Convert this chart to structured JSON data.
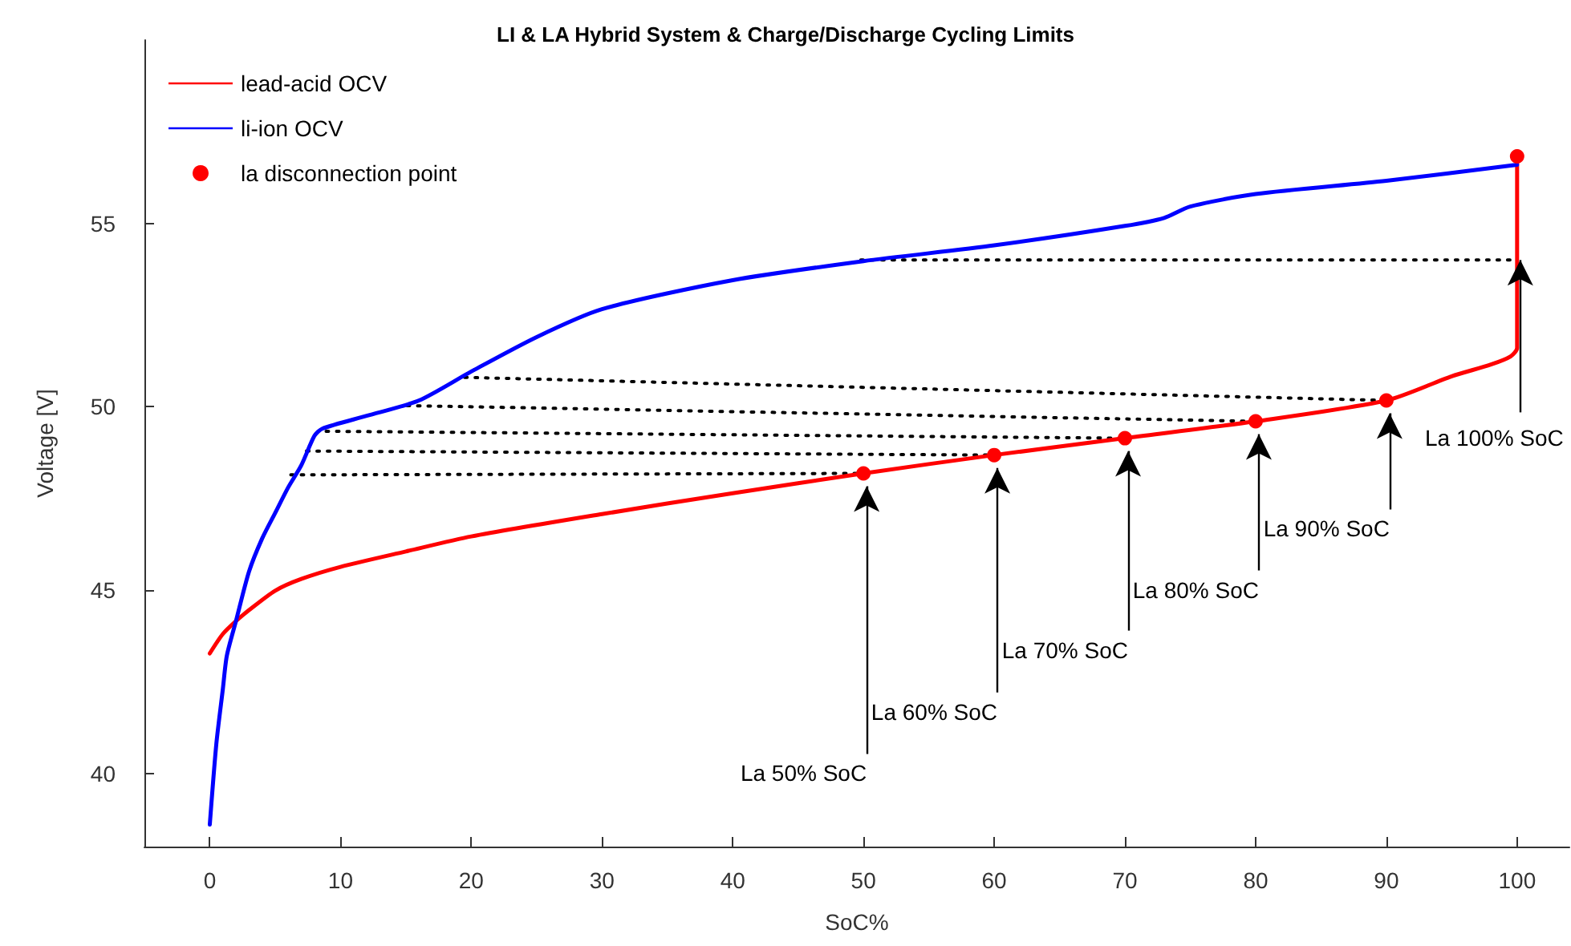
{
  "chart_data": {
    "type": "line",
    "title": "LI & LA Hybrid System & Charge/Discharge Cycling Limits",
    "xlabel": "SoC%",
    "ylabel": "Voltage [V]",
    "xlim": [
      -5,
      104
    ],
    "xticks": [
      0,
      10,
      20,
      30,
      40,
      50,
      60,
      70,
      80,
      90,
      100
    ],
    "ylim": [
      38,
      60
    ],
    "yticks": [
      40,
      45,
      50,
      55
    ],
    "grid": false,
    "legend": "top left",
    "line_style": "solid",
    "series": [
      {
        "name": "lead-acid OCV",
        "color": "#ff0000",
        "x": [
          0,
          1,
          2,
          3,
          5,
          7,
          10,
          15,
          20,
          30,
          40,
          50,
          60,
          70,
          80,
          90,
          95,
          98,
          99.5,
          100,
          100
        ],
        "values": [
          43.27,
          43.8,
          44.15,
          44.45,
          44.98,
          45.3,
          45.63,
          46.05,
          46.46,
          47.07,
          47.64,
          48.18,
          48.68,
          49.14,
          49.6,
          50.17,
          50.83,
          51.15,
          51.37,
          51.6,
          56.83
        ]
      },
      {
        "name": "li-ion OCV",
        "color": "#0000ff",
        "x": [
          0,
          0.5,
          1,
          1.3,
          2,
          3,
          4,
          5,
          6,
          7,
          8,
          8.6,
          12,
          16,
          20,
          25,
          30,
          40,
          50,
          60,
          70,
          73,
          75,
          80,
          90,
          100
        ],
        "values": [
          38.6,
          40.8,
          42.3,
          43.2,
          44.15,
          45.5,
          46.4,
          47.1,
          47.8,
          48.4,
          49.2,
          49.4,
          49.75,
          50.17,
          50.96,
          51.9,
          52.66,
          53.45,
          53.97,
          54.4,
          54.93,
          55.15,
          55.46,
          55.8,
          56.16,
          56.6
        ]
      },
      {
        "name": "la disconnection point",
        "type": "scatter",
        "marker": "circle",
        "color": "#ff0000",
        "x": [
          50,
          60,
          70,
          80,
          90,
          100
        ],
        "values": [
          48.18,
          48.68,
          49.14,
          49.6,
          50.17,
          56.83
        ]
      },
      {
        "type": "line",
        "line_style": "dotted",
        "color": "#000000",
        "x": [
          6.2,
          50
        ],
        "values": [
          48.14,
          48.18
        ]
      },
      {
        "type": "line",
        "line_style": "dotted",
        "color": "#000000",
        "x": [
          7.4,
          60
        ],
        "values": [
          48.79,
          48.68
        ]
      },
      {
        "type": "line",
        "line_style": "dotted",
        "color": "#000000",
        "x": [
          8.9,
          70
        ],
        "values": [
          49.33,
          49.14
        ]
      },
      {
        "type": "line",
        "line_style": "dotted",
        "color": "#000000",
        "x": [
          15.1,
          80
        ],
        "values": [
          50.03,
          49.6
        ]
      },
      {
        "type": "line",
        "line_style": "dotted",
        "color": "#000000",
        "x": [
          19.5,
          90
        ],
        "values": [
          50.8,
          50.17
        ]
      },
      {
        "type": "line",
        "line_style": "dotted",
        "color": "#000000",
        "x": [
          49.8,
          100
        ],
        "values": [
          54.0,
          54.0
        ]
      }
    ],
    "annotations": [
      {
        "text": "La 50% SoC",
        "x": 50,
        "y": 48.18
      },
      {
        "text": "La 60% SoC",
        "x": 60,
        "y": 48.68
      },
      {
        "text": "La 70% SoC",
        "x": 70,
        "y": 49.14
      },
      {
        "text": "La 80% SoC",
        "x": 80,
        "y": 49.6
      },
      {
        "text": "La 90% SoC",
        "x": 90,
        "y": 50.17
      },
      {
        "text": "La 100% SoC",
        "x": 100,
        "y": 54.0
      }
    ]
  }
}
